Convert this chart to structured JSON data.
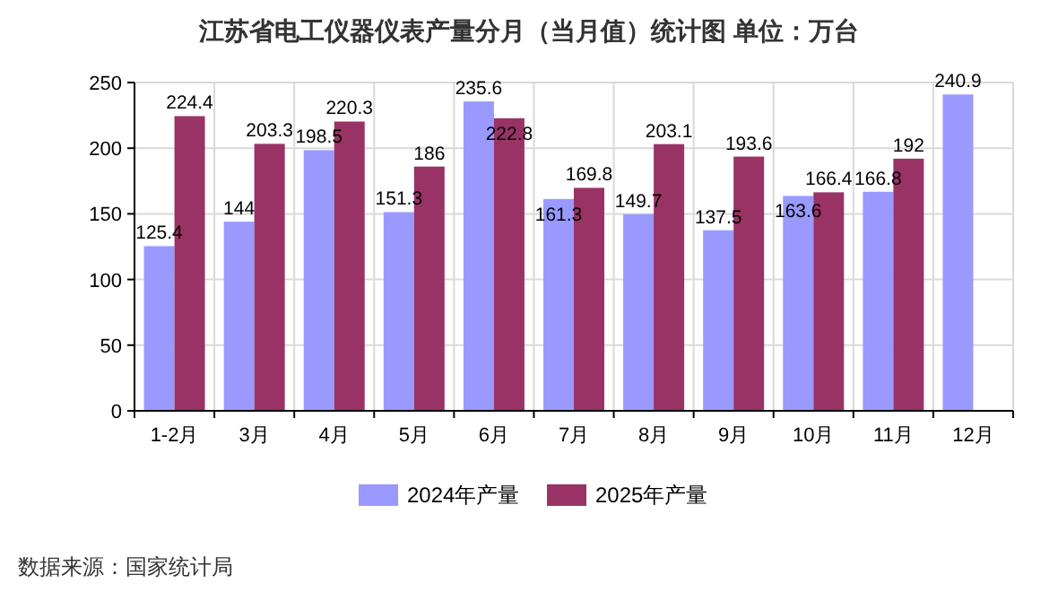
{
  "chart_data": {
    "type": "bar",
    "title": "江苏省电工仪器仪表产量分月（当月值）统计图 单位：万台",
    "categories": [
      "1-2月",
      "3月",
      "4月",
      "5月",
      "6月",
      "7月",
      "8月",
      "9月",
      "10月",
      "11月",
      "12月"
    ],
    "series": [
      {
        "name": "2024年产量",
        "color": "#9999ff",
        "values": [
          125.4,
          144,
          198.5,
          151.3,
          235.6,
          161.3,
          149.7,
          137.5,
          163.6,
          166.8,
          240.9
        ]
      },
      {
        "name": "2025年产量",
        "color": "#993366",
        "values": [
          224.4,
          203.3,
          220.3,
          186,
          222.8,
          169.8,
          203.1,
          193.6,
          166.4,
          192,
          null
        ]
      }
    ],
    "ylim": [
      0,
      250
    ],
    "yticks": [
      0,
      50,
      100,
      150,
      200,
      250
    ],
    "grid": true,
    "legend": "bottom",
    "data_labels": true,
    "annotations": [
      "数据来源：国家统计局"
    ]
  }
}
